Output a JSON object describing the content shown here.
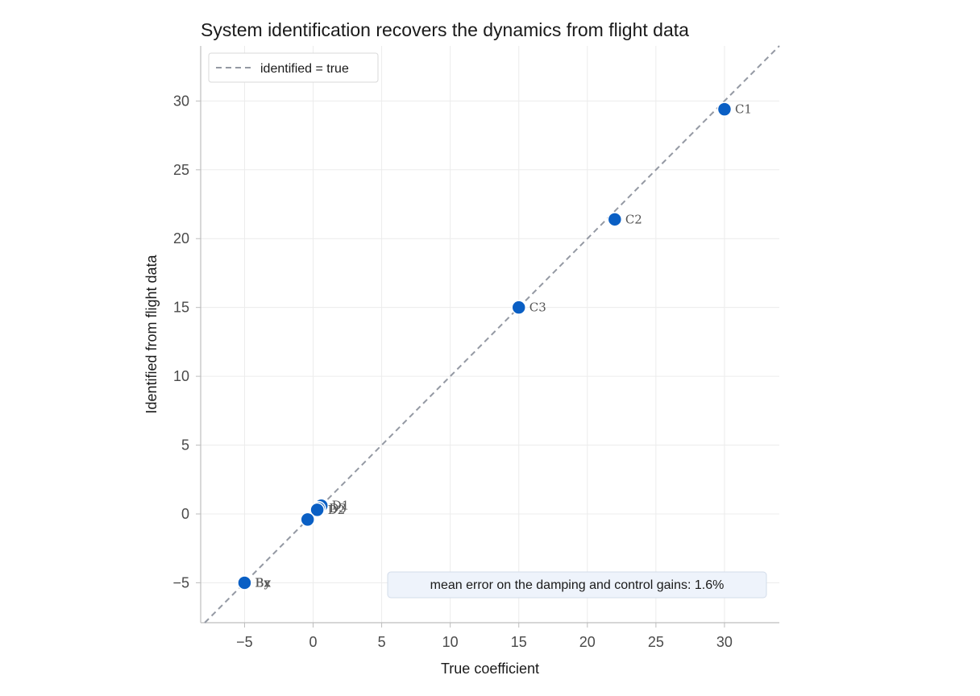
{
  "chart_data": {
    "type": "scatter",
    "title": "System identification recovers the dynamics from flight data",
    "xlabel": "True coefficient",
    "ylabel": "Identified from flight data",
    "xlim": [
      -8.2,
      34
    ],
    "ylim": [
      -7.9,
      34
    ],
    "xticks": [
      -5,
      0,
      5,
      10,
      15,
      20,
      25,
      30
    ],
    "yticks": [
      -5,
      0,
      5,
      10,
      15,
      20,
      25,
      30
    ],
    "xtick_labels": [
      "−5",
      "0",
      "5",
      "10",
      "15",
      "20",
      "25",
      "30"
    ],
    "ytick_labels": [
      "−5",
      "0",
      "5",
      "10",
      "15",
      "20",
      "25",
      "30"
    ],
    "grid": true,
    "point_color": "#0a5fc4",
    "reference_line": {
      "label": "identified = true",
      "color": "#9499a3",
      "style": "dashed"
    },
    "legend_position": "top-left",
    "annotation": "mean error on the damping and control gains: 1.6%",
    "points": [
      {
        "label": "C1",
        "x": 30.0,
        "y": 29.4
      },
      {
        "label": "C2",
        "x": 22.0,
        "y": 21.4
      },
      {
        "label": "C3",
        "x": 15.0,
        "y": 15.0
      },
      {
        "label": "D1",
        "x": 0.6,
        "y": 0.6
      },
      {
        "label": "D3",
        "x": 0.4,
        "y": 0.4
      },
      {
        "label": "D2",
        "x": 0.3,
        "y": 0.3
      },
      {
        "label": "",
        "x": -0.4,
        "y": -0.4
      },
      {
        "label": "Bx",
        "x": -5.0,
        "y": -5.0
      },
      {
        "label": "By",
        "x": -5.0,
        "y": -5.0
      },
      {
        "label": "Bz",
        "x": -5.0,
        "y": -5.0
      }
    ]
  }
}
